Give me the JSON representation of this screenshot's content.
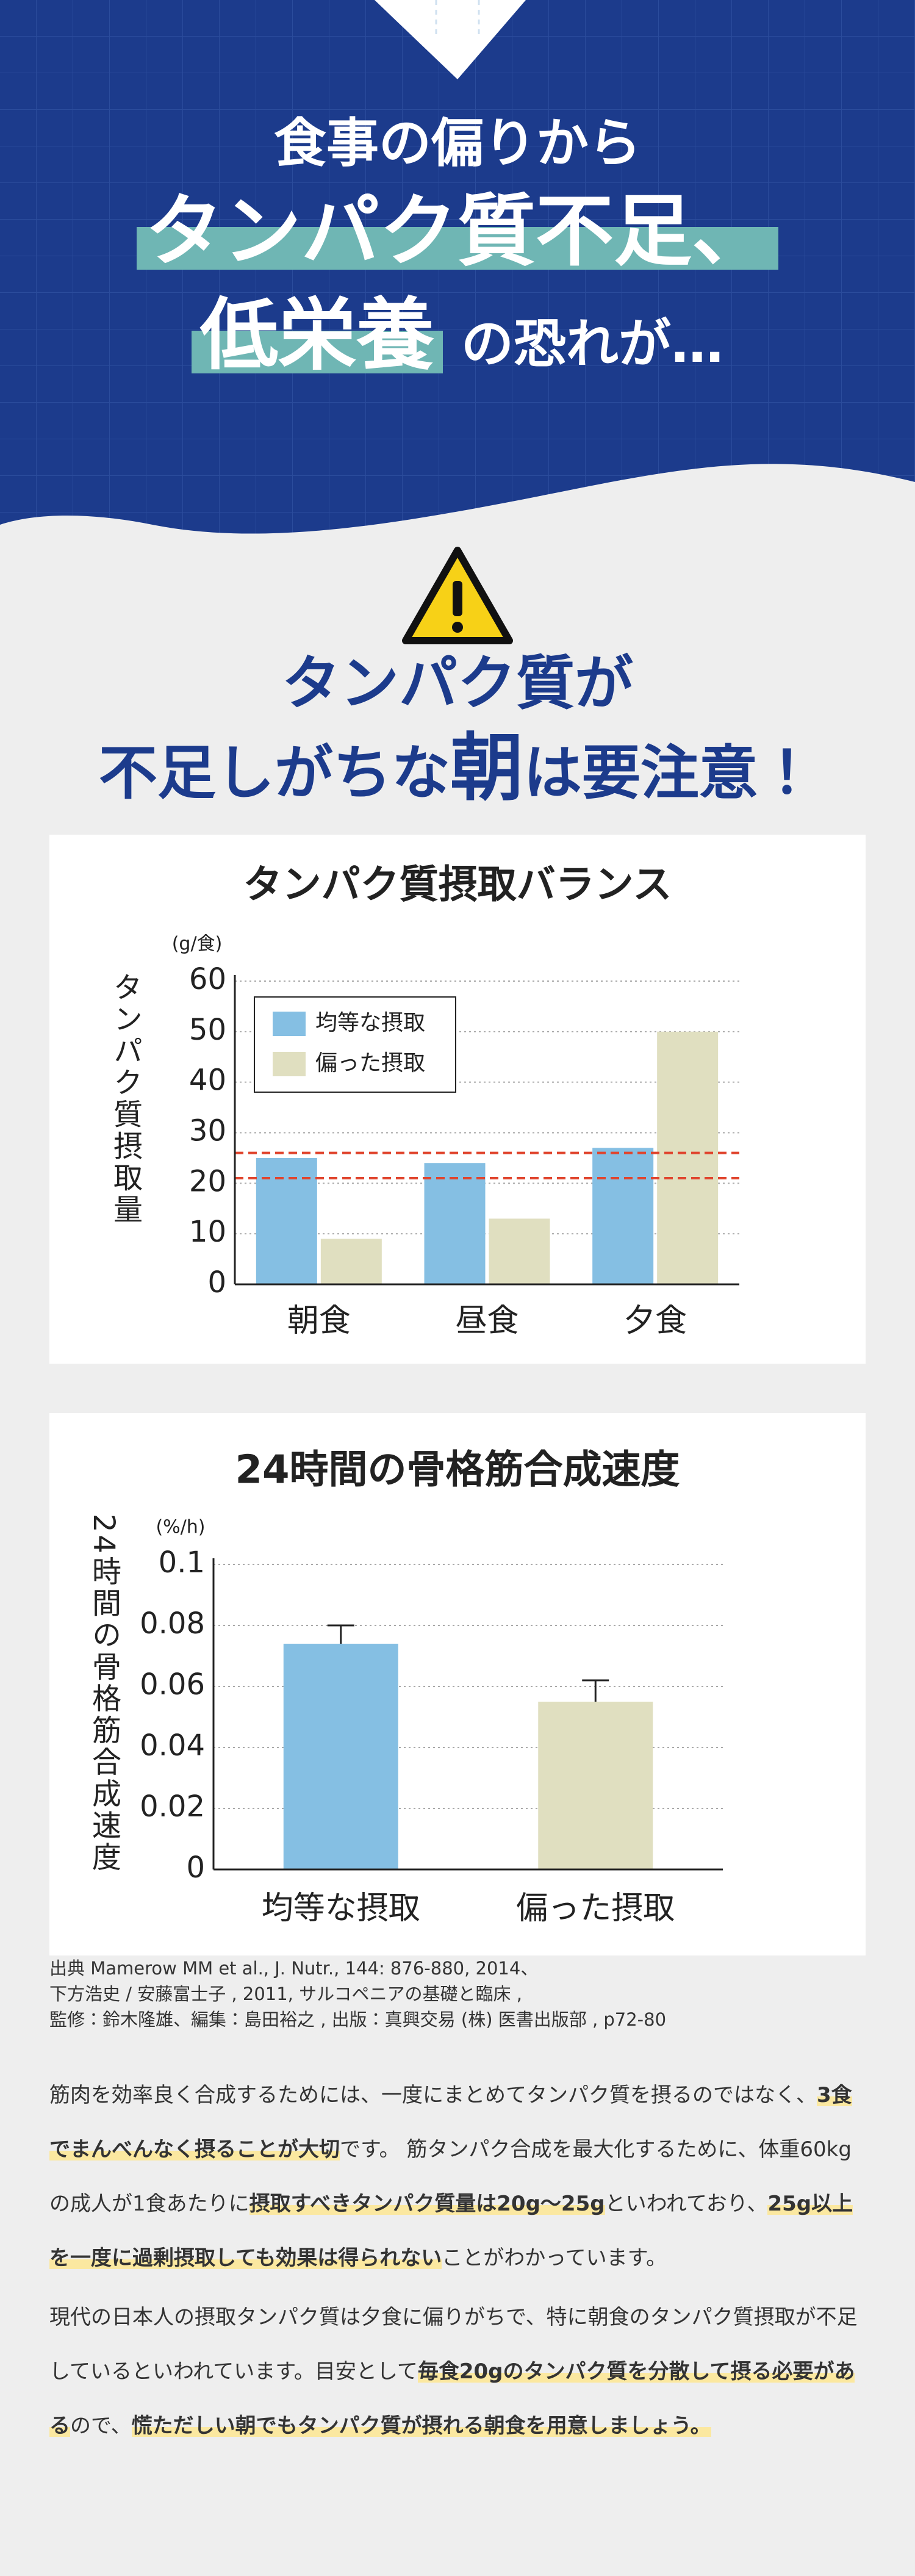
{
  "header": {
    "line1": "食事の偏りから",
    "line2": "タンパク質不足、",
    "line3_highlight": "低栄養",
    "line3_rest": "の恐れが…"
  },
  "notice": {
    "line1": "タンパク質が",
    "line2_a": "不足しがちな",
    "line2_b": "朝",
    "line2_c": "は要注意！"
  },
  "chart_data": [
    {
      "type": "bar",
      "title": "タンパク質摂取バランス",
      "unit": "(g/食)",
      "ylabel": "タンパク質摂取量",
      "categories": [
        "朝食",
        "昼食",
        "夕食"
      ],
      "series": [
        {
          "name": "均等な摂取",
          "color": "#85bfe3",
          "values": [
            25,
            24,
            27
          ]
        },
        {
          "name": "偏った摂取",
          "color": "#e0dfc0",
          "values": [
            9,
            13,
            50
          ]
        }
      ],
      "reference_lines": [
        26,
        21
      ],
      "reference_color": "#e0452e",
      "ylim": [
        0,
        60
      ],
      "yticks": [
        0,
        10,
        20,
        30,
        40,
        50,
        60
      ],
      "grid": true,
      "legend": "upper left"
    },
    {
      "type": "bar",
      "title": "24時間の骨格筋合成速度",
      "unit": "(%/h)",
      "ylabel": "24時間の骨格筋合成速度",
      "categories": [
        "均等な摂取",
        "偏った摂取"
      ],
      "values": [
        0.074,
        0.055
      ],
      "errors": [
        0.006,
        0.007
      ],
      "colors": [
        "#85bfe3",
        "#e0dfc0"
      ],
      "ylim": [
        0,
        0.1
      ],
      "yticks": [
        0,
        0.02,
        0.04,
        0.06,
        0.08,
        0.1
      ],
      "grid": true
    }
  ],
  "source": [
    "出典 Mamerow MM et al., J. Nutr., 144: 876-880, 2014、",
    "下方浩史 / 安藤富士子 , 2011, サルコペニアの基礎と臨床 ,",
    "監修：鈴木隆雄、編集：島田裕之 , 出版：真興交易 (株) 医書出版部 , p72-80"
  ],
  "body": [
    [
      {
        "text": "筋肉を効率良く合成するためには、一度にまとめてタンパク質を摂るのではなく、",
        "mark": false
      },
      {
        "text": "3食でまんべんなく摂ることが大切",
        "mark": true
      },
      {
        "text": "です。 筋タンパク合成を最大化するために、体重60kgの成人が1食あたりに",
        "mark": false
      },
      {
        "text": "摂取すべきタンパク質量は20g〜25g",
        "mark": true
      },
      {
        "text": "といわれており、",
        "mark": false
      },
      {
        "text": "25g以上を一度に過剰摂取しても効果は得られない",
        "mark": true
      },
      {
        "text": "ことがわかっています。",
        "mark": false
      }
    ],
    [
      {
        "text": "現代の日本人の摂取タンパク質は夕食に偏りがちで、特に朝食のタンパク質摂取が不足しているといわれています。目安として",
        "mark": false
      },
      {
        "text": "毎食20gのタンパク質を分散して摂る必要がある",
        "mark": true
      },
      {
        "text": "ので、",
        "mark": false
      },
      {
        "text": "慌ただしい朝でもタンパク質が摂れる朝食を用意しましょう。",
        "mark": true
      }
    ]
  ]
}
